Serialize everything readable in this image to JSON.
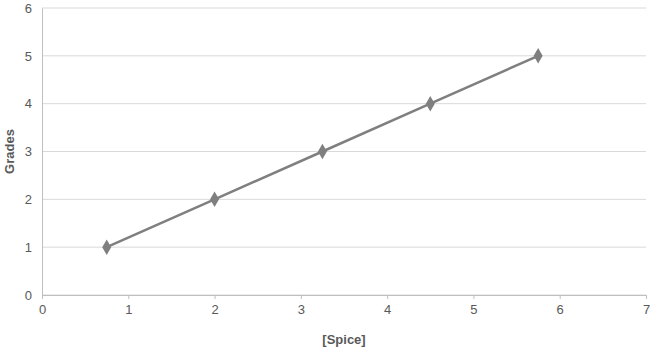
{
  "chart_data": {
    "type": "line",
    "x_label": "[Spice]",
    "y_label": "Grades",
    "x": [
      0.75,
      2,
      3.25,
      4.5,
      5.75
    ],
    "series": [
      {
        "values": [
          1,
          2,
          3,
          4,
          5
        ],
        "color": "#7f7f7f",
        "marker": "diamond",
        "line_style": "solid"
      }
    ],
    "xlim": [
      0,
      7
    ],
    "xticks": [
      0,
      1,
      2,
      3,
      4,
      5,
      6,
      7
    ],
    "ylim": [
      0,
      6
    ],
    "yticks": [
      0,
      1,
      2,
      3,
      4,
      5,
      6
    ],
    "grid": "y"
  }
}
